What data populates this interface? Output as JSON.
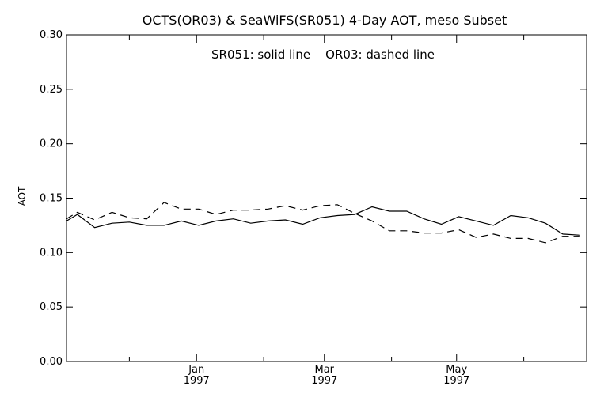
{
  "chart_data": {
    "type": "line",
    "title": "OCTS(OR03) & SeaWiFS(SR051) 4-Day AOT, meso Subset",
    "legend_text": "SR051: solid line    OR03: dashed line",
    "xlabel": "",
    "ylabel": "AOT",
    "ylim": [
      0.0,
      0.3
    ],
    "yticks": [
      "0.00",
      "0.05",
      "0.10",
      "0.15",
      "0.20",
      "0.25",
      "0.30"
    ],
    "xlim": [
      "1996-11-02",
      "1997-06-30"
    ],
    "xticks": [
      {
        "date": "1997-01-01",
        "label": "Jan",
        "year": "1997"
      },
      {
        "date": "1997-03-01",
        "label": "Mar",
        "year": "1997"
      },
      {
        "date": "1997-05-01",
        "label": "May",
        "year": "1997"
      }
    ],
    "grid": false,
    "series": [
      {
        "name": "SR051",
        "style": "solid",
        "color": "#000000",
        "points": [
          [
            "1996-11-02",
            0.129
          ],
          [
            "1996-11-07",
            0.135
          ],
          [
            "1996-11-15",
            0.123
          ],
          [
            "1996-11-23",
            0.127
          ],
          [
            "1996-12-01",
            0.128
          ],
          [
            "1996-12-09",
            0.125
          ],
          [
            "1996-12-17",
            0.125
          ],
          [
            "1996-12-25",
            0.129
          ],
          [
            "1997-01-02",
            0.125
          ],
          [
            "1997-01-10",
            0.129
          ],
          [
            "1997-01-18",
            0.131
          ],
          [
            "1997-01-26",
            0.127
          ],
          [
            "1997-02-03",
            0.129
          ],
          [
            "1997-02-11",
            0.13
          ],
          [
            "1997-02-19",
            0.126
          ],
          [
            "1997-02-27",
            0.132
          ],
          [
            "1997-03-07",
            0.134
          ],
          [
            "1997-03-15",
            0.135
          ],
          [
            "1997-03-23",
            0.142
          ],
          [
            "1997-03-31",
            0.138
          ],
          [
            "1997-04-08",
            0.138
          ],
          [
            "1997-04-16",
            0.131
          ],
          [
            "1997-04-24",
            0.126
          ],
          [
            "1997-05-02",
            0.133
          ],
          [
            "1997-05-10",
            0.129
          ],
          [
            "1997-05-18",
            0.125
          ],
          [
            "1997-05-26",
            0.134
          ],
          [
            "1997-06-03",
            0.132
          ],
          [
            "1997-06-11",
            0.127
          ],
          [
            "1997-06-19",
            0.117
          ],
          [
            "1997-06-27",
            0.116
          ]
        ]
      },
      {
        "name": "OR03",
        "style": "dashed",
        "color": "#000000",
        "points": [
          [
            "1996-11-02",
            0.131
          ],
          [
            "1996-11-07",
            0.137
          ],
          [
            "1996-11-15",
            0.13
          ],
          [
            "1996-11-23",
            0.137
          ],
          [
            "1996-12-01",
            0.132
          ],
          [
            "1996-12-09",
            0.131
          ],
          [
            "1996-12-17",
            0.146
          ],
          [
            "1996-12-25",
            0.14
          ],
          [
            "1997-01-02",
            0.14
          ],
          [
            "1997-01-10",
            0.135
          ],
          [
            "1997-01-18",
            0.139
          ],
          [
            "1997-01-26",
            0.139
          ],
          [
            "1997-02-03",
            0.14
          ],
          [
            "1997-02-11",
            0.143
          ],
          [
            "1997-02-19",
            0.139
          ],
          [
            "1997-02-27",
            0.143
          ],
          [
            "1997-03-07",
            0.144
          ],
          [
            "1997-03-15",
            0.136
          ],
          [
            "1997-03-23",
            0.129
          ],
          [
            "1997-03-31",
            0.12
          ],
          [
            "1997-04-08",
            0.12
          ],
          [
            "1997-04-16",
            0.118
          ],
          [
            "1997-04-24",
            0.118
          ],
          [
            "1997-05-02",
            0.121
          ],
          [
            "1997-05-10",
            0.114
          ],
          [
            "1997-05-18",
            0.117
          ],
          [
            "1997-05-26",
            0.113
          ],
          [
            "1997-06-03",
            0.113
          ],
          [
            "1997-06-11",
            0.109
          ],
          [
            "1997-06-19",
            0.115
          ],
          [
            "1997-06-27",
            0.115
          ]
        ]
      }
    ]
  }
}
